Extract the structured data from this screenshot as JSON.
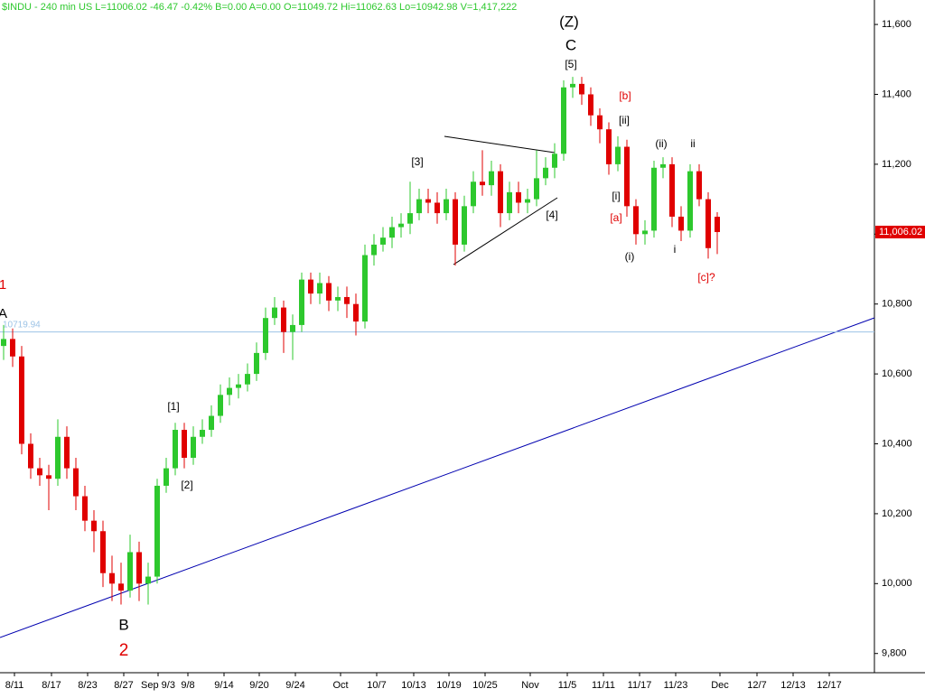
{
  "chart_data": {
    "type": "candlestick",
    "header": "$INDU - 240 min  US  L=11006.02 -46.47 -0.42% B=0.00 A=0.00 O=11049.72 Hi=11062.63 Lo=10942.98 V=1,417,222",
    "up_color": "#2dc82d",
    "down_color": "#e00000",
    "open": [
      10680,
      10700,
      10650,
      10400,
      10330,
      10310,
      10300,
      10420,
      10330,
      10250,
      10180,
      10150,
      10030,
      10000,
      9980,
      10090,
      10000,
      10020,
      10280,
      10330,
      10440,
      10360,
      10420,
      10440,
      10480,
      10540,
      10560,
      10570,
      10600,
      10660,
      10760,
      10790,
      10720,
      10740,
      10870,
      10830,
      10860,
      10810,
      10820,
      10800,
      10750,
      10940,
      10970,
      10990,
      11020,
      11030,
      11060,
      11100,
      11090,
      11060,
      11100,
      10970,
      11080,
      11150,
      11140,
      11180,
      11060,
      11120,
      11090,
      11100,
      11160,
      11190,
      11230,
      11420,
      11430,
      11400,
      11340,
      11300,
      11200,
      11250,
      11080,
      11000,
      11010,
      11190,
      11200,
      11050,
      11010,
      11180,
      11100,
      11049.72
    ],
    "high": [
      10740,
      10730,
      10680,
      10430,
      10360,
      10340,
      10470,
      10450,
      10360,
      10280,
      10210,
      10180,
      10080,
      10060,
      10140,
      10120,
      10060,
      10300,
      10360,
      10460,
      10460,
      10450,
      10470,
      10510,
      10570,
      10590,
      10600,
      10630,
      10690,
      10790,
      10820,
      10810,
      10770,
      10890,
      10890,
      10890,
      10880,
      10850,
      10850,
      10830,
      10970,
      11000,
      11020,
      11050,
      11060,
      11150,
      11130,
      11130,
      11120,
      11130,
      11120,
      11110,
      11180,
      11240,
      11210,
      11200,
      11150,
      11150,
      11130,
      11240,
      11220,
      11260,
      11440,
      11450,
      11450,
      11420,
      11360,
      11320,
      11280,
      11270,
      11100,
      11040,
      11210,
      11220,
      11220,
      11080,
      11200,
      11200,
      11120,
      11062.63
    ],
    "low": [
      10640,
      10620,
      10370,
      10300,
      10280,
      10210,
      10280,
      10300,
      10210,
      10150,
      10090,
      9990,
      9950,
      9940,
      9960,
      9950,
      9940,
      10000,
      10260,
      10310,
      10330,
      10340,
      10400,
      10420,
      10460,
      10510,
      10530,
      10550,
      10580,
      10640,
      10740,
      10660,
      10640,
      10720,
      10800,
      10800,
      10780,
      10780,
      10760,
      10710,
      10730,
      10910,
      10950,
      10960,
      10990,
      11000,
      11040,
      11060,
      11030,
      11040,
      10910,
      10950,
      11060,
      11110,
      11110,
      11020,
      11040,
      11060,
      11060,
      11080,
      11140,
      11160,
      11210,
      11390,
      11370,
      11310,
      11260,
      11170,
      11180,
      11050,
      10970,
      10970,
      10990,
      11160,
      11020,
      10980,
      10990,
      11080,
      10930,
      10942.98
    ],
    "close": [
      10700,
      10650,
      10400,
      10330,
      10310,
      10300,
      10420,
      10330,
      10250,
      10180,
      10150,
      10030,
      10000,
      9980,
      10090,
      10000,
      10020,
      10280,
      10330,
      10440,
      10360,
      10420,
      10440,
      10480,
      10540,
      10560,
      10570,
      10600,
      10660,
      10760,
      10790,
      10720,
      10740,
      10870,
      10830,
      10860,
      10810,
      10820,
      10800,
      10750,
      10940,
      10970,
      10990,
      11020,
      11030,
      11060,
      11100,
      11090,
      11060,
      11100,
      10970,
      11080,
      11150,
      11140,
      11180,
      11060,
      11120,
      11090,
      11100,
      11160,
      11190,
      11230,
      11420,
      11430,
      11400,
      11340,
      11300,
      11200,
      11250,
      11080,
      11000,
      11010,
      11190,
      11200,
      11050,
      11010,
      11180,
      11100,
      10960,
      11006.02
    ],
    "ylim": [
      9745,
      11670
    ],
    "yticks": [
      {
        "value": 9800,
        "label": "9,800"
      },
      {
        "value": 10000,
        "label": "10,000"
      },
      {
        "value": 10200,
        "label": "10,200"
      },
      {
        "value": 10400,
        "label": "10,400"
      },
      {
        "value": 10600,
        "label": "10,600"
      },
      {
        "value": 10800,
        "label": "10,800"
      },
      {
        "value": 11000,
        "label": "11,000"
      },
      {
        "value": 11200,
        "label": "11,200"
      },
      {
        "value": 11400,
        "label": "11,400"
      },
      {
        "value": 11600,
        "label": "11,600"
      }
    ],
    "xlim": [
      -0.4,
      96.4
    ],
    "xticks": [
      {
        "value": 1.2,
        "label": "8/11"
      },
      {
        "value": 5.3,
        "label": "8/17"
      },
      {
        "value": 9.3,
        "label": "8/23"
      },
      {
        "value": 13.3,
        "label": "8/27"
      },
      {
        "value": 17.1,
        "label": "Sep 9/3"
      },
      {
        "value": 20.4,
        "label": "9/8"
      },
      {
        "value": 24.4,
        "label": "9/14"
      },
      {
        "value": 28.3,
        "label": "9/20"
      },
      {
        "value": 32.3,
        "label": "9/24"
      },
      {
        "value": 37.3,
        "label": "Oct"
      },
      {
        "value": 41.3,
        "label": "10/7"
      },
      {
        "value": 45.4,
        "label": "10/13"
      },
      {
        "value": 49.3,
        "label": "10/19"
      },
      {
        "value": 53.3,
        "label": "10/25"
      },
      {
        "value": 58.3,
        "label": "Nov"
      },
      {
        "value": 62.4,
        "label": "11/5"
      },
      {
        "value": 66.4,
        "label": "11/11"
      },
      {
        "value": 70.4,
        "label": "11/17"
      },
      {
        "value": 74.4,
        "label": "11/23"
      },
      {
        "value": 79.3,
        "label": "Dec"
      },
      {
        "value": 83.4,
        "label": "12/7"
      },
      {
        "value": 87.4,
        "label": "12/13"
      },
      {
        "value": 91.4,
        "label": "12/17"
      }
    ],
    "hline": {
      "value": 10719.94,
      "label": "10719.94"
    },
    "last_price": {
      "value": 11006.02,
      "label": "11,006.02"
    },
    "annotations": [
      "(Z)",
      "C",
      "[5]",
      "[b]",
      "[ii]",
      "(ii)",
      "ii",
      "[3]",
      "[i]",
      "[a]",
      "[4]",
      "(i)",
      "i",
      "[c]?",
      "[1]",
      "[2]",
      "B",
      "2",
      "A",
      "1"
    ]
  }
}
